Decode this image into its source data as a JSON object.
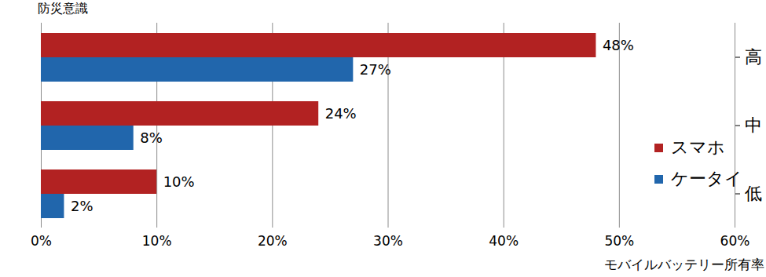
{
  "chart_data": {
    "type": "bar",
    "orientation": "horizontal",
    "xlabel": "モバイルバッテリー所有率",
    "ylabel": "防災意識",
    "categories": [
      "高",
      "中",
      "低"
    ],
    "series": [
      {
        "name": "スマホ",
        "color": "#b22222",
        "values": [
          48,
          24,
          10
        ],
        "value_labels": [
          "48%",
          "24%",
          "10%"
        ]
      },
      {
        "name": "ケータイ",
        "color": "#2166ac",
        "values": [
          27,
          8,
          2
        ],
        "value_labels": [
          "27%",
          "8%",
          "2%"
        ]
      }
    ],
    "xlim": [
      0,
      60
    ],
    "xticks": [
      {
        "value": 0,
        "label": "0%"
      },
      {
        "value": 10,
        "label": "10%"
      },
      {
        "value": 20,
        "label": "20%"
      },
      {
        "value": 30,
        "label": "30%"
      },
      {
        "value": 40,
        "label": "40%"
      },
      {
        "value": 50,
        "label": "50%"
      },
      {
        "value": 60,
        "label": "60%"
      }
    ],
    "grid": true,
    "data_labels": true,
    "legend": "lower right"
  }
}
